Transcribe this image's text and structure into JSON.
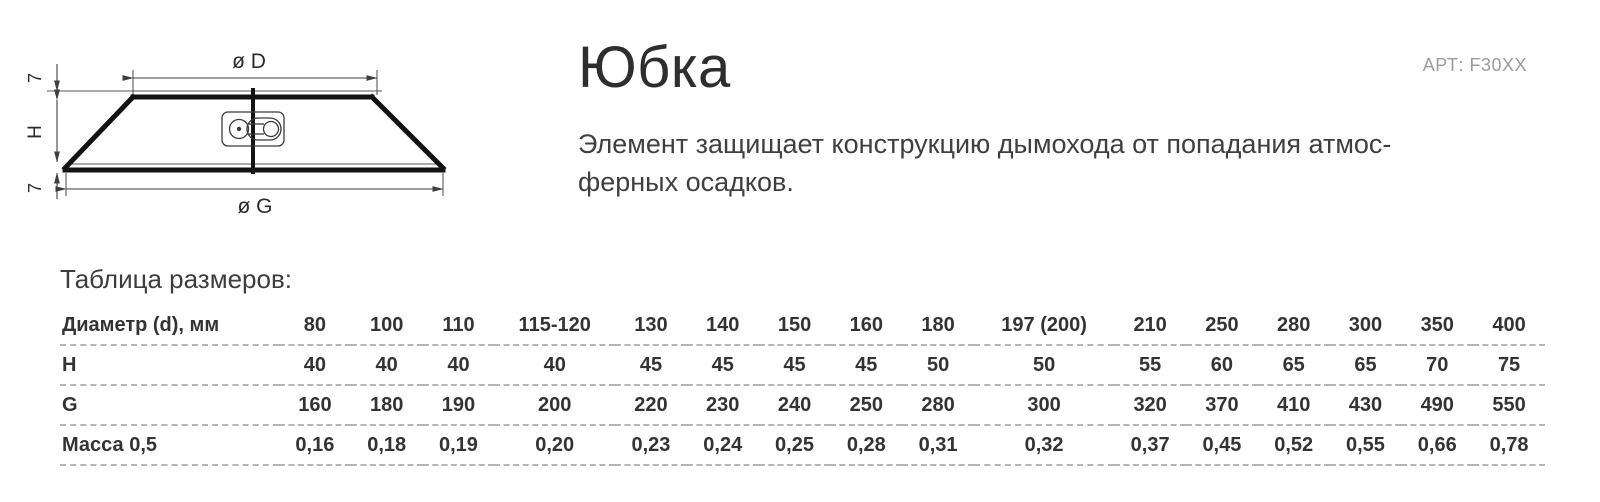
{
  "art_label": "АРТ: F30XX",
  "header": {
    "title": "Юбка",
    "description_line1": "Элемент защищает конструкцию дымохода от попадания атмос-",
    "description_line2": "ферных осадков."
  },
  "drawing": {
    "top_dimension": "ø D",
    "bottom_dimension": "ø G",
    "height_dimension": "H",
    "top_lip": "7",
    "bottom_lip": "7"
  },
  "size_table": {
    "caption": "Таблица размеров:",
    "rows": [
      {
        "label": "Диаметр (d), мм",
        "values": [
          "80",
          "100",
          "110",
          "115-120",
          "130",
          "140",
          "150",
          "160",
          "180",
          "197 (200)",
          "210",
          "250",
          "280",
          "300",
          "350",
          "400"
        ]
      },
      {
        "label": "H",
        "values": [
          "40",
          "40",
          "40",
          "40",
          "45",
          "45",
          "45",
          "45",
          "50",
          "50",
          "55",
          "60",
          "65",
          "65",
          "70",
          "75"
        ]
      },
      {
        "label": "G",
        "values": [
          "160",
          "180",
          "190",
          "200",
          "220",
          "230",
          "240",
          "250",
          "280",
          "300",
          "320",
          "370",
          "410",
          "430",
          "490",
          "550"
        ]
      },
      {
        "label": "Масса 0,5",
        "values": [
          "0,16",
          "0,18",
          "0,19",
          "0,20",
          "0,23",
          "0,24",
          "0,25",
          "0,28",
          "0,31",
          "0,32",
          "0,37",
          "0,45",
          "0,52",
          "0,55",
          "0,66",
          "0,78"
        ]
      }
    ]
  },
  "colors": {
    "text_primary": "#333333",
    "text_muted": "#9c9c9c",
    "drawing_line": "#111111",
    "dash_separator": "#b5b5b5"
  }
}
